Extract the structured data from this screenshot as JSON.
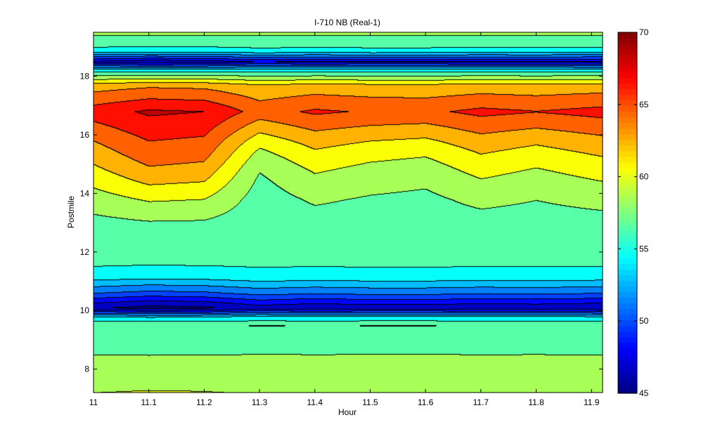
{
  "chart_data": {
    "type": "heatmap",
    "subtype": "filled-contour",
    "title": "I-710 NB (Real-1)",
    "xlabel": "Hour",
    "ylabel": "Postmile",
    "xlim": [
      11,
      11.92
    ],
    "ylim": [
      7.2,
      19.5
    ],
    "xticks": [
      11,
      11.1,
      11.2,
      11.3,
      11.4,
      11.5,
      11.6,
      11.7,
      11.8,
      11.9
    ],
    "xtick_labels": [
      "11",
      "11.1",
      "11.2",
      "11.3",
      "11.4",
      "11.5",
      "11.6",
      "11.7",
      "11.8",
      "11.9"
    ],
    "yticks": [
      8,
      10,
      12,
      14,
      16,
      18
    ],
    "ytick_labels": [
      "8",
      "10",
      "12",
      "14",
      "16",
      "18"
    ],
    "colorbar": {
      "min": 45,
      "max": 70,
      "ticks": [
        45,
        50,
        55,
        60,
        65,
        70
      ],
      "tick_labels": [
        "45",
        "50",
        "55",
        "60",
        "65",
        "70"
      ],
      "colormap": "jet"
    },
    "contour_levels": [
      45.8,
      47.5,
      49,
      50.5,
      52,
      53.5,
      55.5,
      57.5,
      59.5,
      61.5,
      63.5,
      65.5,
      67.5
    ],
    "hours": [
      11,
      11.0833,
      11.1667,
      11.25,
      11.3333,
      11.4167,
      11.5,
      11.5833,
      11.6667,
      11.75,
      11.8333,
      11.9167
    ],
    "speed_profile": [
      {
        "postmile": 7.2,
        "speed": 59.5
      },
      {
        "postmile": 8.0,
        "speed": 58.5
      },
      {
        "postmile": 9.0,
        "speed": 56.5
      },
      {
        "postmile": 9.5,
        "speed": 57.5
      },
      {
        "postmile": 9.8,
        "speed": 53.5
      },
      {
        "postmile": 10.1,
        "speed": 46.0
      },
      {
        "postmile": 10.6,
        "speed": 50.5
      },
      {
        "postmile": 11.2,
        "speed": 54.5
      },
      {
        "postmile": 12.0,
        "speed": 57.0
      },
      {
        "postmile": 12.8,
        "speed": 56.5
      },
      {
        "postmile": 13.8,
        "speed": 58.5
      },
      {
        "postmile": 14.8,
        "speed": 61.0
      },
      {
        "postmile": 15.8,
        "speed": 63.5
      },
      {
        "postmile": 16.8,
        "speed": 66.5
      },
      {
        "postmile": 17.7,
        "speed": 62.5
      },
      {
        "postmile": 18.2,
        "speed": 55.0
      },
      {
        "postmile": 18.5,
        "speed": 47.0
      },
      {
        "postmile": 18.9,
        "speed": 55.0
      },
      {
        "postmile": 19.5,
        "speed": 58.0
      }
    ],
    "hour_variation": [
      {
        "hour": 11.0,
        "offset": 0.0,
        "scale": 1.0
      },
      {
        "hour": 11.1,
        "offset": 1.0,
        "scale": 1.25
      },
      {
        "hour": 11.2,
        "offset": 0.8,
        "scale": 1.15
      },
      {
        "hour": 11.3,
        "offset": -1.6,
        "scale": 0.8
      },
      {
        "hour": 11.4,
        "offset": -0.6,
        "scale": 0.95
      },
      {
        "hour": 11.5,
        "offset": -1.0,
        "scale": 0.85
      },
      {
        "hour": 11.6,
        "offset": -1.2,
        "scale": 0.85
      },
      {
        "hour": 11.7,
        "offset": -0.4,
        "scale": 0.95
      },
      {
        "hour": 11.8,
        "offset": -0.8,
        "scale": 0.9
      },
      {
        "hour": 11.92,
        "offset": -0.3,
        "scale": 1.0
      }
    ]
  }
}
